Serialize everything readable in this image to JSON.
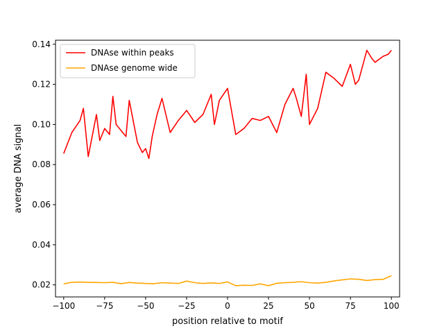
{
  "chart_data": {
    "type": "line",
    "xlabel": "position relative to motif",
    "ylabel": "average DNA signal",
    "xlim": [
      -105,
      105
    ],
    "ylim": [
      0.014,
      0.142
    ],
    "xticks": [
      -100,
      -75,
      -50,
      -25,
      0,
      25,
      50,
      75,
      100
    ],
    "xtick_labels": [
      "−100",
      "−75",
      "−50",
      "−25",
      "0",
      "25",
      "50",
      "75",
      "100"
    ],
    "yticks": [
      0.02,
      0.04,
      0.06,
      0.08,
      0.1,
      0.12,
      0.14
    ],
    "ytick_labels": [
      "0.02",
      "0.04",
      "0.06",
      "0.08",
      "0.10",
      "0.12",
      "0.14"
    ],
    "grid": false,
    "legend_position": "top-left",
    "series": [
      {
        "name": "DNAse within peaks",
        "color": "#ff0000",
        "x": [
          -100,
          -95,
          -90,
          -88,
          -85,
          -80,
          -78,
          -75,
          -72,
          -70,
          -68,
          -65,
          -62,
          -60,
          -55,
          -52,
          -50,
          -48,
          -46,
          -43,
          -40,
          -35,
          -30,
          -25,
          -20,
          -15,
          -10,
          -8,
          -5,
          0,
          5,
          10,
          15,
          20,
          25,
          30,
          35,
          40,
          42,
          45,
          48,
          50,
          55,
          60,
          65,
          70,
          75,
          78,
          80,
          85,
          88,
          90,
          95,
          98,
          100
        ],
        "y": [
          0.0855,
          0.096,
          0.102,
          0.108,
          0.084,
          0.105,
          0.092,
          0.098,
          0.095,
          0.114,
          0.1,
          0.097,
          0.094,
          0.112,
          0.091,
          0.086,
          0.088,
          0.083,
          0.094,
          0.105,
          0.113,
          0.096,
          0.102,
          0.107,
          0.101,
          0.105,
          0.115,
          0.1,
          0.112,
          0.118,
          0.095,
          0.098,
          0.103,
          0.102,
          0.104,
          0.096,
          0.11,
          0.118,
          0.113,
          0.104,
          0.125,
          0.1,
          0.108,
          0.126,
          0.123,
          0.119,
          0.13,
          0.12,
          0.122,
          0.137,
          0.133,
          0.131,
          0.134,
          0.135,
          0.137
        ]
      },
      {
        "name": "DNAse genome wide",
        "color": "#ffa500",
        "x": [
          -100,
          -95,
          -90,
          -85,
          -80,
          -75,
          -70,
          -65,
          -60,
          -55,
          -50,
          -45,
          -40,
          -35,
          -30,
          -25,
          -20,
          -15,
          -10,
          -5,
          0,
          5,
          10,
          15,
          20,
          25,
          30,
          35,
          40,
          45,
          50,
          55,
          60,
          65,
          70,
          75,
          80,
          85,
          90,
          95,
          100
        ],
        "y": [
          0.0205,
          0.0213,
          0.0214,
          0.0213,
          0.0212,
          0.0211,
          0.0213,
          0.0206,
          0.0212,
          0.0209,
          0.0207,
          0.0206,
          0.0211,
          0.0209,
          0.0207,
          0.0219,
          0.0211,
          0.0207,
          0.021,
          0.0207,
          0.0215,
          0.0196,
          0.0198,
          0.0197,
          0.0205,
          0.0196,
          0.0208,
          0.0211,
          0.0213,
          0.0216,
          0.0211,
          0.0209,
          0.0213,
          0.022,
          0.0225,
          0.023,
          0.0228,
          0.0222,
          0.0226,
          0.0228,
          0.0246
        ]
      }
    ]
  }
}
